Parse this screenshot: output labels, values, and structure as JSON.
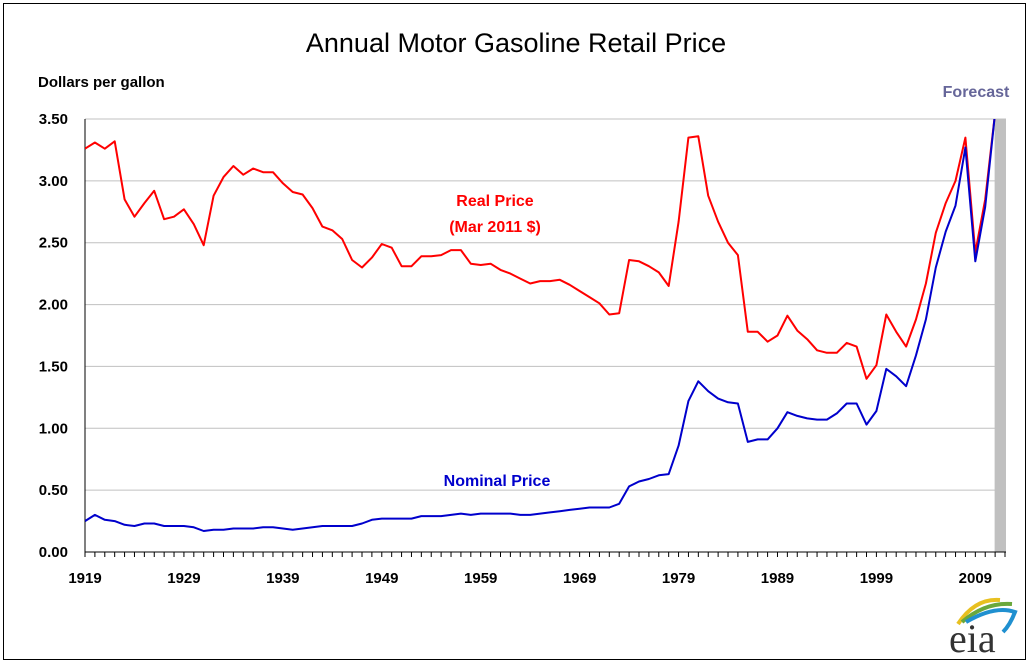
{
  "chart_data": {
    "type": "line",
    "title": "Annual Motor Gasoline Retail Price",
    "ylabel": "Dollars per gallon",
    "xlabel": "",
    "ylim": [
      0,
      3.5
    ],
    "xlim": [
      1919,
      2012
    ],
    "yticks": [
      "0.00",
      "0.50",
      "1.00",
      "1.50",
      "2.00",
      "2.50",
      "3.00",
      "3.50"
    ],
    "xticks": [
      "1919",
      "1929",
      "1939",
      "1949",
      "1959",
      "1969",
      "1979",
      "1989",
      "1999",
      "2009"
    ],
    "grid": "horizontal",
    "forecast": {
      "label": "Forecast",
      "start": 2011,
      "end": 2012,
      "color": "#c0c0c0",
      "label_color": "#666699"
    },
    "x": [
      1919,
      1920,
      1921,
      1922,
      1923,
      1924,
      1925,
      1926,
      1927,
      1928,
      1929,
      1930,
      1931,
      1932,
      1933,
      1934,
      1935,
      1936,
      1937,
      1938,
      1939,
      1940,
      1941,
      1942,
      1943,
      1944,
      1945,
      1946,
      1947,
      1948,
      1949,
      1950,
      1951,
      1952,
      1953,
      1954,
      1955,
      1956,
      1957,
      1958,
      1959,
      1960,
      1961,
      1962,
      1963,
      1964,
      1965,
      1966,
      1967,
      1968,
      1969,
      1970,
      1971,
      1972,
      1973,
      1974,
      1975,
      1976,
      1977,
      1978,
      1979,
      1980,
      1981,
      1982,
      1983,
      1984,
      1985,
      1986,
      1987,
      1988,
      1989,
      1990,
      1991,
      1992,
      1993,
      1994,
      1995,
      1996,
      1997,
      1998,
      1999,
      2000,
      2001,
      2002,
      2003,
      2004,
      2005,
      2006,
      2007,
      2008,
      2009,
      2010,
      2011,
      2012
    ],
    "series": [
      {
        "name": "Real Price (Mar 2011 $)",
        "label_lines": [
          "Real Price",
          "(Mar 2011 $)"
        ],
        "color": "#ff0000",
        "values": [
          3.26,
          3.31,
          3.26,
          3.32,
          2.85,
          2.71,
          2.82,
          2.92,
          2.69,
          2.71,
          2.77,
          2.65,
          2.48,
          2.88,
          3.03,
          3.12,
          3.05,
          3.1,
          3.07,
          3.07,
          2.98,
          2.91,
          2.89,
          2.78,
          2.63,
          2.6,
          2.53,
          2.36,
          2.3,
          2.38,
          2.49,
          2.46,
          2.31,
          2.31,
          2.39,
          2.39,
          2.4,
          2.44,
          2.44,
          2.33,
          2.32,
          2.33,
          2.28,
          2.25,
          2.21,
          2.17,
          2.19,
          2.19,
          2.2,
          2.16,
          2.11,
          2.06,
          2.01,
          1.92,
          1.93,
          2.36,
          2.35,
          2.31,
          2.26,
          2.15,
          2.67,
          3.35,
          3.36,
          2.88,
          2.67,
          2.5,
          2.4,
          1.78,
          1.78,
          1.7,
          1.75,
          1.91,
          1.79,
          1.72,
          1.63,
          1.61,
          1.61,
          1.69,
          1.66,
          1.4,
          1.51,
          1.92,
          1.78,
          1.66,
          1.88,
          2.17,
          2.58,
          2.82,
          3.0,
          3.35,
          2.42,
          2.85,
          3.55,
          3.6
        ]
      },
      {
        "name": "Nominal Price",
        "label_lines": [
          "Nominal Price"
        ],
        "color": "#0000cc",
        "values": [
          0.25,
          0.3,
          0.26,
          0.25,
          0.22,
          0.21,
          0.23,
          0.23,
          0.21,
          0.21,
          0.21,
          0.2,
          0.17,
          0.18,
          0.18,
          0.19,
          0.19,
          0.19,
          0.2,
          0.2,
          0.19,
          0.18,
          0.19,
          0.2,
          0.21,
          0.21,
          0.21,
          0.21,
          0.23,
          0.26,
          0.27,
          0.27,
          0.27,
          0.27,
          0.29,
          0.29,
          0.29,
          0.3,
          0.31,
          0.3,
          0.31,
          0.31,
          0.31,
          0.31,
          0.3,
          0.3,
          0.31,
          0.32,
          0.33,
          0.34,
          0.35,
          0.36,
          0.36,
          0.36,
          0.39,
          0.53,
          0.57,
          0.59,
          0.62,
          0.63,
          0.86,
          1.22,
          1.38,
          1.3,
          1.24,
          1.21,
          1.2,
          0.89,
          0.91,
          0.91,
          1.0,
          1.13,
          1.1,
          1.08,
          1.07,
          1.07,
          1.12,
          1.2,
          1.2,
          1.03,
          1.14,
          1.48,
          1.42,
          1.34,
          1.59,
          1.88,
          2.3,
          2.59,
          2.8,
          3.27,
          2.35,
          2.79,
          3.55,
          3.6
        ]
      }
    ]
  },
  "logo": {
    "text": "eia"
  }
}
